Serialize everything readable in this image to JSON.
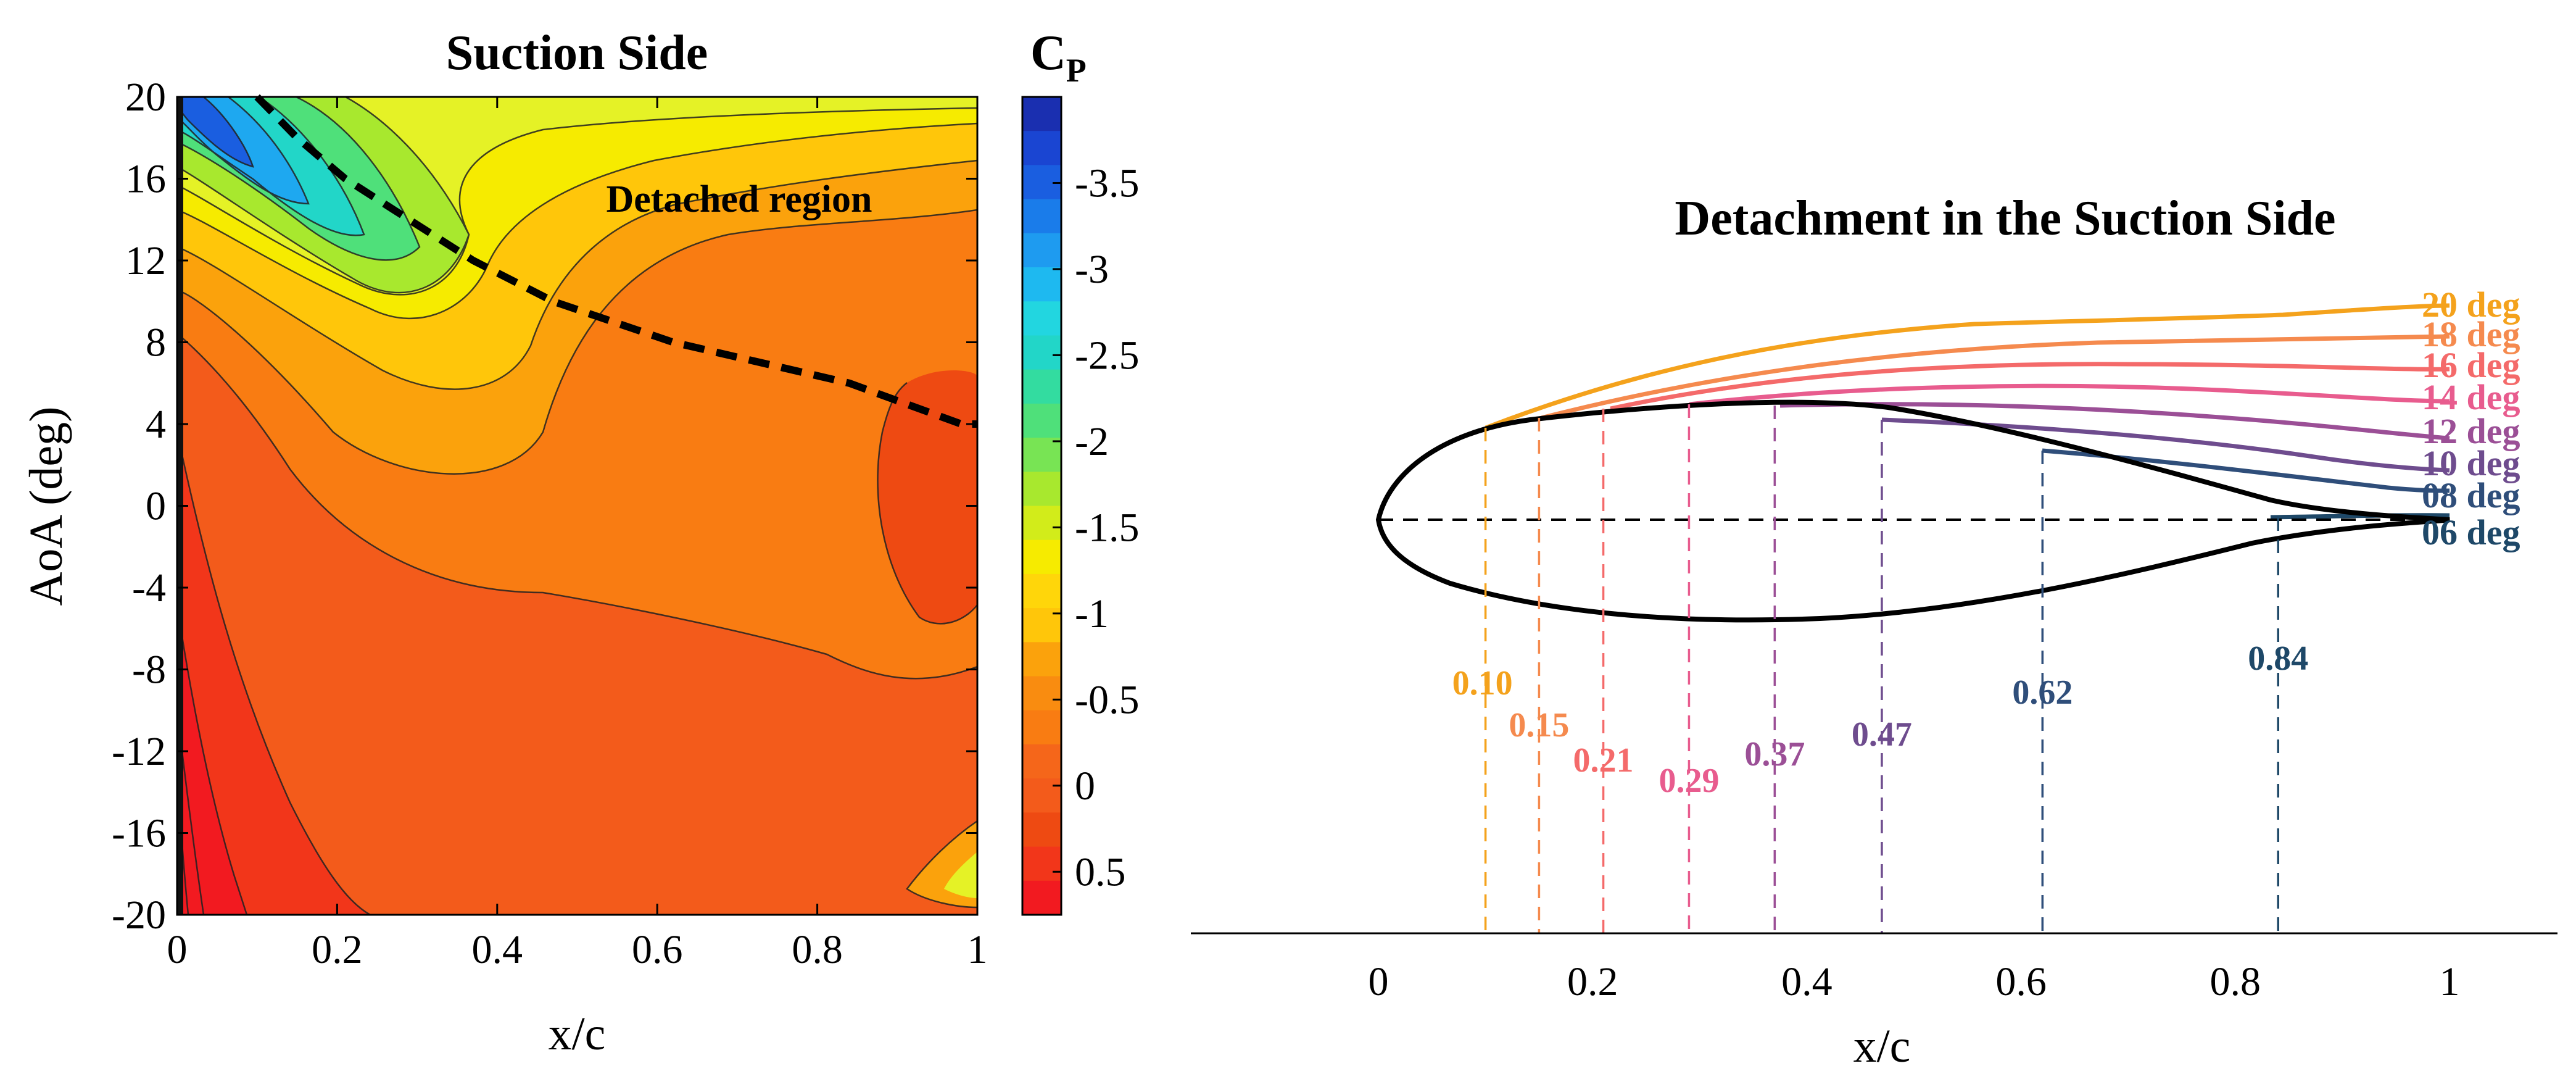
{
  "colors": {
    "airfoil": "#000000",
    "d20": "#F4A21C",
    "d18": "#F58A4E",
    "d16": "#F46A6A",
    "d14": "#E85C8E",
    "d12": "#9B4F96",
    "d10": "#6E4C8E",
    "d08": "#2F4E7A",
    "d06": "#1E4868"
  },
  "chart_data": [
    {
      "type": "heatmap",
      "title": "Suction Side",
      "xlabel": "x/c",
      "ylabel": "AoA (deg)",
      "xlim": [
        0,
        1
      ],
      "ylim": [
        -20,
        20
      ],
      "xticks": [
        0,
        0.2,
        0.4,
        0.6,
        0.8,
        1
      ],
      "xtick_labels": [
        "0",
        "0.2",
        "0.4",
        "0.6",
        "0.8",
        "1"
      ],
      "yticks": [
        20,
        16,
        12,
        8,
        4,
        0,
        -4,
        -8,
        -12,
        -16,
        -20
      ],
      "ytick_labels": [
        "20",
        "16",
        "12",
        "8",
        "4",
        "0",
        "-4",
        "-8",
        "-12",
        "-16",
        "-20"
      ],
      "colorbar": {
        "label": "C",
        "label_sub": "P",
        "ticks": [
          -3.5,
          -3,
          -2.5,
          -2,
          -1.5,
          -1,
          -0.5,
          0,
          0.5
        ],
        "tick_labels": [
          "-3.5",
          "-3",
          "-2.5",
          "-2",
          "-1.5",
          "-1",
          "-0.5",
          "0",
          "0.5"
        ],
        "range": [
          -4,
          0.75
        ]
      },
      "annotation": "Detached region",
      "detachment_line": {
        "x": [
          0.1,
          0.15,
          0.21,
          0.29,
          0.37,
          0.47,
          0.62,
          0.84,
          0.98
        ],
        "aoa": [
          20,
          18,
          16,
          14,
          12,
          10,
          8,
          6,
          4
        ]
      }
    },
    {
      "type": "line",
      "title": "Detachment in the Suction Side",
      "xlabel": "x/c",
      "xlim": [
        -0.2,
        1.1
      ],
      "xticks": [
        0,
        0.2,
        0.4,
        0.6,
        0.8,
        1
      ],
      "xtick_labels": [
        "0",
        "0.2",
        "0.4",
        "0.6",
        "0.8",
        "1"
      ],
      "series": [
        {
          "name": "20 deg",
          "x_detach": 0.1,
          "label": "0.10"
        },
        {
          "name": "18 deg",
          "x_detach": 0.15,
          "label": "0.15"
        },
        {
          "name": "16 deg",
          "x_detach": 0.21,
          "label": "0.21"
        },
        {
          "name": "14 deg",
          "x_detach": 0.29,
          "label": "0.29"
        },
        {
          "name": "12 deg",
          "x_detach": 0.37,
          "label": "0.37"
        },
        {
          "name": "10 deg",
          "x_detach": 0.47,
          "label": "0.47"
        },
        {
          "name": "08 deg",
          "x_detach": 0.62,
          "label": "0.62"
        },
        {
          "name": "06 deg",
          "x_detach": 0.84,
          "label": "0.84"
        }
      ]
    }
  ]
}
